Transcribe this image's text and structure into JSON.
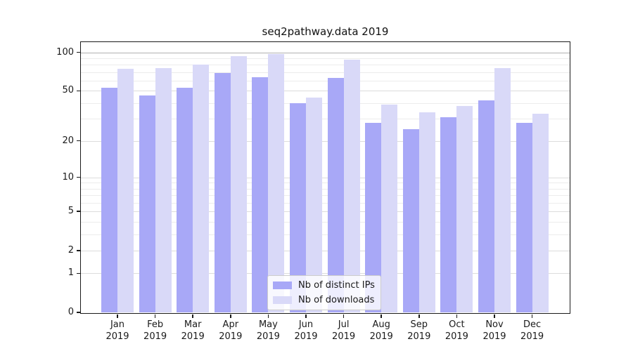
{
  "title": "seq2pathway.data 2019",
  "chart_data": {
    "type": "bar",
    "title": "seq2pathway.data 2019",
    "categories": [
      "Jan",
      "Feb",
      "Mar",
      "Apr",
      "May",
      "Jun",
      "Jul",
      "Aug",
      "Sep",
      "Oct",
      "Nov",
      "Dec"
    ],
    "year_label": "2019",
    "series": [
      {
        "key": "distinct-ips",
        "name": "Nb of distinct IPs",
        "color": "#a8a8f7",
        "values": [
          53,
          46,
          53,
          69,
          64,
          40,
          63,
          28,
          25,
          31,
          42,
          28
        ]
      },
      {
        "key": "downloads",
        "name": "Nb of downloads",
        "color": "#d9d9f8",
        "values": [
          74,
          75,
          80,
          94,
          97,
          44,
          88,
          39,
          34,
          38,
          75,
          33
        ]
      }
    ],
    "y_axis": {
      "scale": "log1p",
      "tick_labels": [
        0,
        1,
        2,
        5,
        10,
        20,
        50,
        100
      ],
      "major_gridlines": [
        1,
        2,
        5,
        10,
        20,
        50,
        100
      ],
      "minor_gridlines": [
        3,
        4,
        6,
        7,
        8,
        9,
        30,
        40,
        60,
        70,
        80,
        90
      ],
      "ylim": [
        0,
        122
      ]
    },
    "xlabel": "",
    "ylabel": "",
    "grid": true,
    "legend_position": "lower center"
  },
  "colors": {
    "bar_distinct_ips": "#a8a8f7",
    "bar_downloads": "#d9d9f8",
    "gridline_minor": "#ececec",
    "gridline_major": "#dcdcdc",
    "gridline_top": "#b0b0b0",
    "axis": "#1a1a1a",
    "background": "#ffffff"
  }
}
